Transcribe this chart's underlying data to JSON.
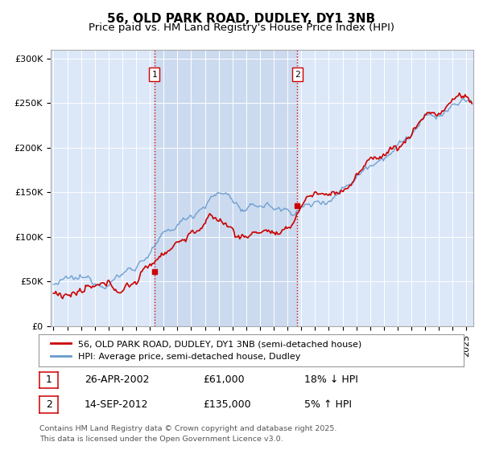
{
  "title": "56, OLD PARK ROAD, DUDLEY, DY1 3NB",
  "subtitle": "Price paid vs. HM Land Registry's House Price Index (HPI)",
  "ylabel_ticks": [
    "£0",
    "£50K",
    "£100K",
    "£150K",
    "£200K",
    "£250K",
    "£300K"
  ],
  "ytick_values": [
    0,
    50000,
    100000,
    150000,
    200000,
    250000,
    300000
  ],
  "ylim": [
    0,
    310000
  ],
  "xlim_start": 1994.8,
  "xlim_end": 2025.5,
  "plot_bg_color": "#dce8f8",
  "highlight_bg_color": "#ccddf0",
  "hpi_color": "#6699cc",
  "price_color": "#cc0000",
  "vline_color": "#cc0000",
  "sale1_year": 2002.32,
  "sale1_price": 61000,
  "sale2_year": 2012.71,
  "sale2_price": 135000,
  "legend_label1": "56, OLD PARK ROAD, DUDLEY, DY1 3NB (semi-detached house)",
  "legend_label2": "HPI: Average price, semi-detached house, Dudley",
  "table_row1": [
    "1",
    "26-APR-2002",
    "£61,000",
    "18% ↓ HPI"
  ],
  "table_row2": [
    "2",
    "14-SEP-2012",
    "£135,000",
    "5% ↑ HPI"
  ],
  "footer": "Contains HM Land Registry data © Crown copyright and database right 2025.\nThis data is licensed under the Open Government Licence v3.0.",
  "title_fontsize": 11,
  "subtitle_fontsize": 9.5,
  "tick_fontsize": 8,
  "legend_fontsize": 8
}
